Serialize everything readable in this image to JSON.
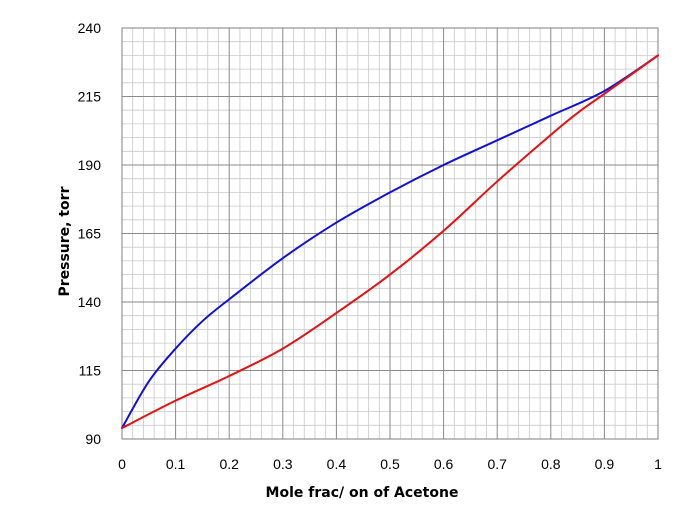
{
  "chart_data": {
    "type": "line",
    "title": "",
    "xlabel": "Mole frac/ on of Acetone",
    "ylabel": "Pressure, torr",
    "xlim": [
      0,
      1
    ],
    "ylim": [
      90,
      240
    ],
    "x_ticks": [
      0,
      0.1,
      0.2,
      0.3,
      0.4,
      0.5,
      0.6,
      0.7,
      0.8,
      0.9,
      1
    ],
    "x_tick_labels": [
      "0",
      "0.1",
      "0.2",
      "0.3",
      "0.4",
      "0.5",
      "0.6",
      "0.7",
      "0.8",
      "0.9",
      "1"
    ],
    "y_ticks": [
      90,
      115,
      140,
      165,
      190,
      215,
      240
    ],
    "y_tick_labels": [
      "90",
      "115",
      "140",
      "165",
      "190",
      "215",
      "240"
    ],
    "grid": true,
    "legend": "none",
    "series": [
      {
        "color": "#1010dd",
        "x": [
          0,
          0.05,
          0.1,
          0.15,
          0.2,
          0.3,
          0.4,
          0.5,
          0.6,
          0.7,
          0.8,
          0.9,
          1
        ],
        "y": [
          94,
          111,
          123,
          133,
          141,
          156,
          169,
          180,
          190,
          199,
          208,
          217,
          230
        ]
      },
      {
        "color": "#e81010",
        "x": [
          0,
          0.1,
          0.2,
          0.3,
          0.4,
          0.5,
          0.6,
          0.7,
          0.8,
          0.85,
          0.9,
          1
        ],
        "y": [
          94,
          104,
          113,
          123,
          136,
          150,
          166,
          184,
          201,
          209,
          216,
          230
        ]
      }
    ]
  }
}
